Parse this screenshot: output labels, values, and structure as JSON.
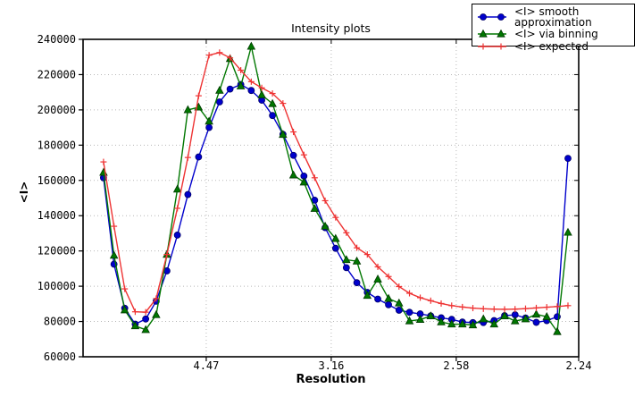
{
  "chart_data": {
    "type": "line",
    "title": "Intensity plots",
    "xlabel": "Resolution",
    "ylabel": "<I>",
    "x_axis": {
      "unit": "1/d^2",
      "range": [
        0.0007,
        0.1993
      ],
      "ticks": [
        {
          "pos": 0.05006,
          "label": "4.47"
        },
        {
          "pos": 0.10014,
          "label": "3.16"
        },
        {
          "pos": 0.15023,
          "label": "2.58"
        },
        {
          "pos": 0.19929,
          "label": "2.24"
        }
      ]
    },
    "y_axis": {
      "range": [
        60000,
        240000
      ],
      "ticks": [
        60000,
        80000,
        100000,
        120000,
        140000,
        160000,
        180000,
        200000,
        220000,
        240000
      ]
    },
    "grid": {
      "show": true,
      "style": "dotted",
      "color": "#b8b8b8"
    },
    "legend": {
      "position": "upper-right"
    },
    "x": [
      0.0089,
      0.0131,
      0.0174,
      0.0216,
      0.0258,
      0.03,
      0.0343,
      0.0385,
      0.0427,
      0.047,
      0.0512,
      0.0554,
      0.0596,
      0.0639,
      0.0681,
      0.0723,
      0.0766,
      0.0808,
      0.085,
      0.0892,
      0.0935,
      0.0977,
      0.1019,
      0.1062,
      0.1104,
      0.1146,
      0.1188,
      0.1231,
      0.1273,
      0.1315,
      0.1358,
      0.14,
      0.1442,
      0.1484,
      0.1527,
      0.1569,
      0.1611,
      0.1654,
      0.1696,
      0.1738,
      0.178,
      0.1823,
      0.1865,
      0.1907,
      0.195
    ],
    "series": [
      {
        "id": "smooth-approximation",
        "name": "<I> smooth approximation",
        "color": "#0000cc",
        "edge": "#000066",
        "marker": "circle",
        "values": [
          161500,
          112500,
          87500,
          78500,
          81400,
          91500,
          108700,
          129000,
          152000,
          173300,
          190000,
          204500,
          211800,
          214400,
          211000,
          205500,
          196800,
          186100,
          174200,
          162500,
          148800,
          133200,
          121500,
          110500,
          102000,
          96500,
          92700,
          89500,
          86400,
          85200,
          84300,
          83200,
          82100,
          81200,
          79700,
          79400,
          79400,
          80500,
          83300,
          83800,
          82000,
          79500,
          80500,
          82700,
          172500
        ]
      },
      {
        "id": "via-binning",
        "name": "<I> via binning",
        "color": "#007700",
        "edge": "#003800",
        "marker": "triangle",
        "values": [
          164500,
          117500,
          86500,
          77500,
          75300,
          83800,
          118000,
          155000,
          200000,
          201500,
          193500,
          211000,
          229000,
          213500,
          236000,
          208500,
          203500,
          186000,
          163000,
          159000,
          144000,
          134000,
          127000,
          115000,
          114200,
          94700,
          104000,
          93000,
          90400,
          80300,
          81100,
          83100,
          79700,
          78500,
          78500,
          78000,
          81400,
          78500,
          83100,
          80300,
          81400,
          84100,
          82700,
          74200,
          130500
        ]
      },
      {
        "id": "expected",
        "name": "<I> expected",
        "color": "#ee3333",
        "edge": "#ee3333",
        "marker": "plus",
        "values": [
          170500,
          134000,
          98500,
          85500,
          85300,
          93000,
          118000,
          144200,
          173000,
          208000,
          231000,
          232500,
          229500,
          222500,
          216000,
          212500,
          209300,
          203700,
          187500,
          174500,
          161500,
          148500,
          139000,
          130300,
          121800,
          118000,
          111000,
          105500,
          99800,
          96000,
          93500,
          91800,
          90200,
          89000,
          88200,
          87600,
          87200,
          87000,
          86900,
          87000,
          87300,
          87700,
          88100,
          88500,
          89000
        ]
      }
    ]
  }
}
